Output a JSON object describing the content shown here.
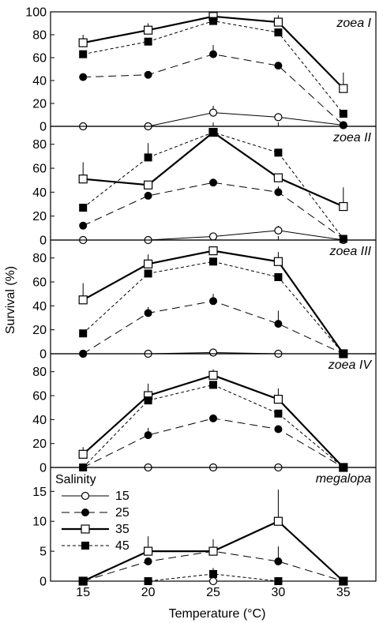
{
  "chart_data": {
    "type": "line",
    "xlabel": "Temperature (°C)",
    "ylabel": "Survival (%)",
    "x": [
      15,
      20,
      25,
      30,
      35
    ],
    "xlim": [
      12.5,
      37.5
    ],
    "legend": {
      "title": "Salinity",
      "position": "top-left of bottom panel",
      "entries": [
        {
          "label": "15",
          "style": "thin",
          "marker": "open-circle"
        },
        {
          "label": "25",
          "style": "dashed",
          "marker": "filled-circle"
        },
        {
          "label": "35",
          "style": "thick",
          "marker": "open-square"
        },
        {
          "label": "45",
          "style": "dotted",
          "marker": "filled-square"
        }
      ]
    },
    "panels": [
      {
        "title": "zoea I",
        "ylim": [
          0,
          100
        ],
        "yticks": [
          0,
          20,
          40,
          60,
          80,
          100
        ],
        "series": [
          {
            "salinity": "15",
            "values": [
              0,
              0,
              12,
              8,
              1
            ],
            "errors": [
              0,
              0,
              6,
              0,
              0
            ]
          },
          {
            "salinity": "25",
            "values": [
              43,
              45,
              63,
              53,
              1
            ],
            "errors": [
              0,
              0,
              8,
              0,
              0
            ]
          },
          {
            "salinity": "35",
            "values": [
              73,
              84,
              96,
              91,
              33
            ],
            "errors": [
              7,
              6,
              0,
              6,
              14
            ]
          },
          {
            "salinity": "45",
            "values": [
              63,
              74,
              92,
              82,
              11
            ],
            "errors": [
              0,
              0,
              0,
              0,
              0
            ]
          }
        ]
      },
      {
        "title": "zoea II",
        "ylim": [
          0,
          95
        ],
        "yticks": [
          0,
          20,
          40,
          60,
          80
        ],
        "series": [
          {
            "salinity": "15",
            "values": [
              0,
              0,
              3,
              8,
              0
            ],
            "errors": [
              0,
              0,
              0,
              4,
              0
            ]
          },
          {
            "salinity": "25",
            "values": [
              12,
              37,
              48,
              40,
              1
            ],
            "errors": [
              0,
              0,
              0,
              5,
              0
            ]
          },
          {
            "salinity": "35",
            "values": [
              51,
              46,
              90,
              52,
              28
            ],
            "errors": [
              14,
              0,
              0,
              0,
              16
            ]
          },
          {
            "salinity": "45",
            "values": [
              27,
              69,
              90,
              73,
              1
            ],
            "errors": [
              0,
              12,
              0,
              0,
              0
            ]
          }
        ]
      },
      {
        "title": "zoea III",
        "ylim": [
          0,
          95
        ],
        "yticks": [
          0,
          20,
          40,
          60,
          80
        ],
        "series": [
          {
            "salinity": "15",
            "values": [
              0,
              0,
              1,
              0,
              0
            ],
            "errors": [
              0,
              0,
              0,
              0,
              0
            ]
          },
          {
            "salinity": "25",
            "values": [
              0,
              34,
              44,
              25,
              0
            ],
            "errors": [
              0,
              5,
              6,
              11,
              0
            ]
          },
          {
            "salinity": "35",
            "values": [
              45,
              75,
              86,
              77,
              0
            ],
            "errors": [
              14,
              8,
              0,
              8,
              0
            ]
          },
          {
            "salinity": "45",
            "values": [
              17,
              67,
              77,
              64,
              0
            ],
            "errors": [
              0,
              0,
              0,
              0,
              0
            ]
          }
        ]
      },
      {
        "title": "zoea IV",
        "ylim": [
          0,
          95
        ],
        "yticks": [
          0,
          20,
          40,
          60,
          80
        ],
        "series": [
          {
            "salinity": "15",
            "values": [
              0,
              0,
              0,
              0,
              0
            ],
            "errors": [
              0,
              0,
              0,
              0,
              0
            ]
          },
          {
            "salinity": "25",
            "values": [
              0,
              27,
              41,
              32,
              0
            ],
            "errors": [
              0,
              6,
              0,
              0,
              0
            ]
          },
          {
            "salinity": "35",
            "values": [
              11,
              60,
              77,
              57,
              0
            ],
            "errors": [
              6,
              10,
              5,
              9,
              0
            ]
          },
          {
            "salinity": "45",
            "values": [
              0,
              56,
              69,
              45,
              0
            ],
            "errors": [
              0,
              0,
              0,
              0,
              0
            ]
          }
        ]
      },
      {
        "title": "megalopa",
        "ylim": [
          0,
          19
        ],
        "yticks": [
          0,
          5,
          10,
          15
        ],
        "series": [
          {
            "salinity": "15",
            "values": [
              0,
              0,
              0,
              0,
              0
            ],
            "errors": [
              0,
              0,
              0,
              0,
              0
            ]
          },
          {
            "salinity": "25",
            "values": [
              0,
              3.3,
              5,
              3.3,
              0
            ],
            "errors": [
              0,
              0,
              0,
              2.5,
              0
            ]
          },
          {
            "salinity": "35",
            "values": [
              0,
              5,
              5,
              10,
              0
            ],
            "errors": [
              0,
              2.5,
              2,
              5.3,
              0
            ]
          },
          {
            "salinity": "45",
            "values": [
              0,
              0,
              1.2,
              0,
              0
            ],
            "errors": [
              0,
              0,
              1,
              0,
              0
            ]
          }
        ]
      }
    ]
  }
}
